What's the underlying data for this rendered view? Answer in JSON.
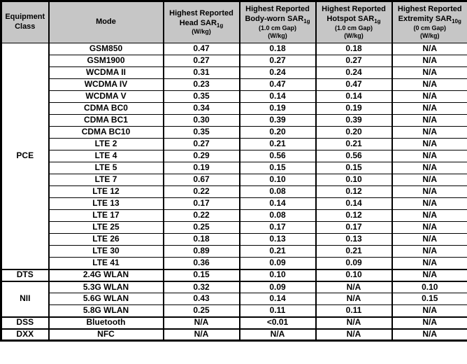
{
  "colors": {
    "header_bg": "#c6c6c6",
    "border": "#000000",
    "text": "#000000"
  },
  "headers": {
    "equipment_class": {
      "line1": "Equipment",
      "line2": "Class"
    },
    "mode": "Mode",
    "head": {
      "main1": "Highest Reported",
      "main2": "Head SAR",
      "sub": "1g",
      "unit": "(W/kg)"
    },
    "body_worn": {
      "main1": "Highest Reported",
      "main2": "Body-worn SAR",
      "sub": "1g",
      "gap": "(1.0 cm Gap)",
      "unit": "(W/kg)"
    },
    "hotspot": {
      "main1": "Highest Reported",
      "main2": "Hotspot SAR",
      "sub": "1g",
      "gap": "(1.0 cm Gap)",
      "unit": "(W/kg)"
    },
    "extremity": {
      "main1": "Highest Reported",
      "main2": "Extremity SAR",
      "sub": "10g",
      "gap": "(0 cm Gap)",
      "unit": "(W/kg)"
    }
  },
  "groups": [
    {
      "equipment_class": "PCE",
      "rows": [
        {
          "mode": "GSM850",
          "head": "0.47",
          "body_worn": "0.18",
          "hotspot": "0.18",
          "extremity": "N/A"
        },
        {
          "mode": "GSM1900",
          "head": "0.27",
          "body_worn": "0.27",
          "hotspot": "0.27",
          "extremity": "N/A"
        },
        {
          "mode": "WCDMA II",
          "head": "0.31",
          "body_worn": "0.24",
          "hotspot": "0.24",
          "extremity": "N/A"
        },
        {
          "mode": "WCDMA IV",
          "head": "0.23",
          "body_worn": "0.47",
          "hotspot": "0.47",
          "extremity": "N/A"
        },
        {
          "mode": "WCDMA V",
          "head": "0.35",
          "body_worn": "0.14",
          "hotspot": "0.14",
          "extremity": "N/A"
        },
        {
          "mode": "CDMA BC0",
          "head": "0.34",
          "body_worn": "0.19",
          "hotspot": "0.19",
          "extremity": "N/A"
        },
        {
          "mode": "CDMA BC1",
          "head": "0.30",
          "body_worn": "0.39",
          "hotspot": "0.39",
          "extremity": "N/A"
        },
        {
          "mode": "CDMA BC10",
          "head": "0.35",
          "body_worn": "0.20",
          "hotspot": "0.20",
          "extremity": "N/A"
        },
        {
          "mode": "LTE 2",
          "head": "0.27",
          "body_worn": "0.21",
          "hotspot": "0.21",
          "extremity": "N/A"
        },
        {
          "mode": "LTE 4",
          "head": "0.29",
          "body_worn": "0.56",
          "hotspot": "0.56",
          "extremity": "N/A"
        },
        {
          "mode": "LTE 5",
          "head": "0.19",
          "body_worn": "0.15",
          "hotspot": "0.15",
          "extremity": "N/A"
        },
        {
          "mode": "LTE 7",
          "head": "0.67",
          "body_worn": "0.10",
          "hotspot": "0.10",
          "extremity": "N/A"
        },
        {
          "mode": "LTE 12",
          "head": "0.22",
          "body_worn": "0.08",
          "hotspot": "0.12",
          "extremity": "N/A"
        },
        {
          "mode": "LTE 13",
          "head": "0.17",
          "body_worn": "0.14",
          "hotspot": "0.14",
          "extremity": "N/A"
        },
        {
          "mode": "LTE 17",
          "head": "0.22",
          "body_worn": "0.08",
          "hotspot": "0.12",
          "extremity": "N/A"
        },
        {
          "mode": "LTE 25",
          "head": "0.25",
          "body_worn": "0.17",
          "hotspot": "0.17",
          "extremity": "N/A"
        },
        {
          "mode": "LTE 26",
          "head": "0.18",
          "body_worn": "0.13",
          "hotspot": "0.13",
          "extremity": "N/A"
        },
        {
          "mode": "LTE 30",
          "head": "0.89",
          "body_worn": "0.21",
          "hotspot": "0.21",
          "extremity": "N/A"
        },
        {
          "mode": "LTE 41",
          "head": "0.36",
          "body_worn": "0.09",
          "hotspot": "0.09",
          "extremity": "N/A"
        }
      ]
    },
    {
      "equipment_class": "DTS",
      "rows": [
        {
          "mode": "2.4G WLAN",
          "head": "0.15",
          "body_worn": "0.10",
          "hotspot": "0.10",
          "extremity": "N/A"
        }
      ]
    },
    {
      "equipment_class": "NII",
      "rows": [
        {
          "mode": "5.3G WLAN",
          "head": "0.32",
          "body_worn": "0.09",
          "hotspot": "N/A",
          "extremity": "0.10"
        },
        {
          "mode": "5.6G WLAN",
          "head": "0.43",
          "body_worn": "0.14",
          "hotspot": "N/A",
          "extremity": "0.15"
        },
        {
          "mode": "5.8G WLAN",
          "head": "0.25",
          "body_worn": "0.11",
          "hotspot": "0.11",
          "extremity": "N/A"
        }
      ]
    },
    {
      "equipment_class": "DSS",
      "rows": [
        {
          "mode": "Bluetooth",
          "head": "N/A",
          "body_worn": "<0.01",
          "hotspot": "N/A",
          "extremity": "N/A"
        }
      ]
    },
    {
      "equipment_class": "DXX",
      "rows": [
        {
          "mode": "NFC",
          "head": "N/A",
          "body_worn": "N/A",
          "hotspot": "N/A",
          "extremity": "N/A"
        }
      ]
    }
  ]
}
